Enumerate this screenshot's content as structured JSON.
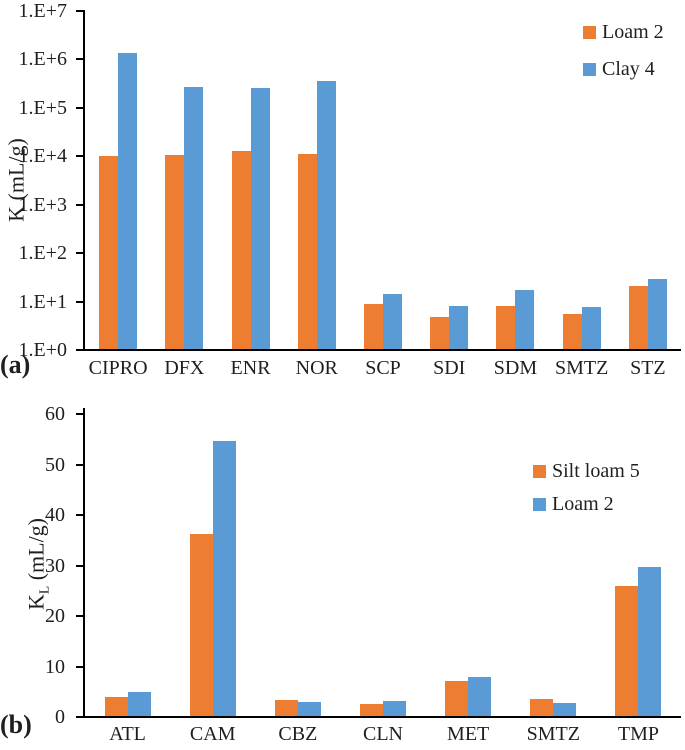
{
  "chart_data": [
    {
      "id": "a",
      "type": "bar",
      "panel_label": "(a)",
      "title": "",
      "xlabel": "",
      "ylabel": "K (mL/g)",
      "ylabel_parts": {
        "main": "K",
        "sub": "",
        "rest": " (mL/g)"
      },
      "yscale": "log",
      "ylim": [
        1,
        10000000
      ],
      "ytick_labels": [
        "1.E+0",
        "1.E+1",
        "1.E+2",
        "1.E+3",
        "1.E+4",
        "1.E+5",
        "1.E+6",
        "1.E+7"
      ],
      "grid": false,
      "legend_position": "top-right",
      "categories": [
        "CIPRO",
        "DFX",
        "ENR",
        "NOR",
        "SCP",
        "SDI",
        "SDM",
        "SMTZ",
        "STZ"
      ],
      "series": [
        {
          "name": "Loam 2",
          "color": "#ED7D31",
          "values": [
            9500,
            10000,
            12500,
            10500,
            8.5,
            4.6,
            7.9,
            5.4,
            20
          ]
        },
        {
          "name": "Clay 4",
          "color": "#5B9BD5",
          "values": [
            1300000,
            260000,
            250000,
            340000,
            13.5,
            7.8,
            16.5,
            7.5,
            28.5
          ]
        }
      ]
    },
    {
      "id": "b",
      "type": "bar",
      "panel_label": "(b)",
      "title": "",
      "xlabel": "",
      "ylabel": "KL (mL/g)",
      "ylabel_parts": {
        "main": "K",
        "sub": "L",
        "rest": " (mL/g)"
      },
      "yscale": "linear",
      "ylim": [
        0,
        60
      ],
      "ytick_labels": [
        "0",
        "10",
        "20",
        "30",
        "40",
        "50",
        "60"
      ],
      "grid": false,
      "legend_position": "right-middle",
      "categories": [
        "ATL",
        "CAM",
        "CBZ",
        "CLN",
        "MET",
        "SMTZ",
        "TMP"
      ],
      "series": [
        {
          "name": "Silt loam 5",
          "color": "#ED7D31",
          "values": [
            3.8,
            36,
            3.1,
            2.4,
            7.0,
            3.4,
            25.7
          ]
        },
        {
          "name": "Loam 2",
          "color": "#5B9BD5",
          "values": [
            4.8,
            54.5,
            2.7,
            3.0,
            7.8,
            2.6,
            29.5
          ]
        }
      ]
    }
  ],
  "colors": {
    "series_orange": "#ED7D31",
    "series_blue": "#5B9BD5",
    "axis": "#000000",
    "text": "#1f1f1f"
  }
}
